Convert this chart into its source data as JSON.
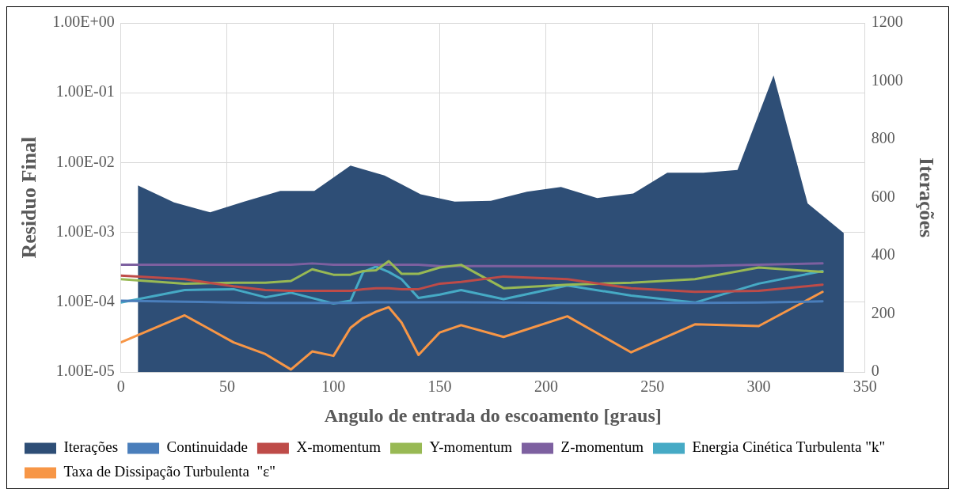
{
  "chart_data": {
    "type": "line",
    "xlabel": "Angulo de entrada do escoamento [graus]",
    "ylabel": "Residuo Final",
    "y2label": "Iterações",
    "x": [
      0,
      30,
      53,
      68,
      80,
      90,
      100,
      108,
      114,
      120,
      126,
      132,
      140,
      150,
      160,
      180,
      210,
      240,
      270,
      300,
      330
    ],
    "series": [
      {
        "name": "Iterações",
        "type": "area",
        "axis": "y2",
        "color": "#2e4e76",
        "x": [
          8,
          25,
          42,
          58,
          75,
          91,
          108,
          124,
          141,
          157,
          174,
          191,
          207,
          224,
          241,
          257,
          274,
          290,
          307,
          323,
          340
        ],
        "values": [
          642,
          583,
          549,
          586,
          623,
          623,
          710,
          676,
          611,
          586,
          589,
          620,
          636,
          598,
          614,
          685,
          685,
          695,
          1020,
          580,
          478
        ]
      },
      {
        "name": "Continuidade",
        "color": "#4a7ebb",
        "values": [
          0.000105,
          0.000102,
          9.9e-05,
          9.8e-05,
          9.8e-05,
          9.8e-05,
          9.8e-05,
          9.8e-05,
          9.9e-05,
          0.0001,
          0.0001,
          0.0001,
          0.0001,
          0.0001,
          0.0001,
          9.9e-05,
          9.8e-05,
          9.8e-05,
          9.8e-05,
          9.9e-05,
          0.000103
        ]
      },
      {
        "name": "X-momentum",
        "color": "#be4b48",
        "values": [
          0.000241,
          0.000214,
          0.000169,
          0.00015,
          0.000146,
          0.000146,
          0.000146,
          0.000146,
          0.000154,
          0.000159,
          0.000159,
          0.000154,
          0.000154,
          0.000185,
          0.000196,
          0.000234,
          0.000214,
          0.000159,
          0.000141,
          0.000146,
          0.000179
        ]
      },
      {
        "name": "Y-momentum",
        "color": "#98b954",
        "values": [
          0.000214,
          0.000185,
          0.00019,
          0.00019,
          0.000202,
          0.000297,
          0.000248,
          0.000248,
          0.00028,
          0.000288,
          0.000388,
          0.000256,
          0.000256,
          0.000315,
          0.000344,
          0.000159,
          0.000179,
          0.00019,
          0.000214,
          0.000315,
          0.000272
        ]
      },
      {
        "name": "Z-momentum",
        "color": "#7d60a0",
        "values": [
          0.000344,
          0.000344,
          0.000344,
          0.000344,
          0.000344,
          0.00036,
          0.000344,
          0.000344,
          0.000344,
          0.000344,
          0.000344,
          0.000344,
          0.000344,
          0.00033,
          0.00033,
          0.00033,
          0.00033,
          0.00033,
          0.00033,
          0.000344,
          0.00036
        ]
      },
      {
        "name": "Energia Cinética Turbulenta \"k\"",
        "color": "#46aac5",
        "values": [
          9.9e-05,
          0.00015,
          0.000154,
          0.000118,
          0.000137,
          0.000115,
          9.6e-05,
          0.000105,
          0.000272,
          0.000325,
          0.000272,
          0.000214,
          0.000115,
          0.000129,
          0.00015,
          0.000111,
          0.000174,
          0.000125,
          9.9e-05,
          0.000185,
          0.00028
        ]
      },
      {
        "name": "Taxa de Dissipação Turbulenta  \"ε\"",
        "color": "#f79646",
        "values": [
          2.67e-05,
          6.5e-05,
          2.67e-05,
          1.81e-05,
          1.09e-05,
          1.98e-05,
          1.71e-05,
          4.3e-05,
          5.96e-05,
          7.34e-05,
          8.5e-05,
          5.14e-05,
          1.76e-05,
          3.7e-05,
          4.7e-05,
          3.19e-05,
          6.3e-05,
          1.92e-05,
          4.84e-05,
          4.56e-05,
          0.000141
        ]
      }
    ],
    "log": "y",
    "xlim": [
      0,
      350
    ],
    "xticks": [
      0,
      50,
      100,
      150,
      200,
      250,
      300,
      350
    ],
    "ylim": [
      1e-05,
      1
    ],
    "yticks": [
      {
        "value": 1e-05,
        "label": "1.00E-05"
      },
      {
        "value": 0.0001,
        "label": "1.00E-04"
      },
      {
        "value": 0.001,
        "label": "1.00E-03"
      },
      {
        "value": 0.01,
        "label": "1.00E-02"
      },
      {
        "value": 0.1,
        "label": "1.00E-01"
      },
      {
        "value": 1,
        "label": "1.00E+00"
      }
    ],
    "y2lim": [
      0,
      1200
    ],
    "y2ticks": [
      0,
      200,
      400,
      600,
      800,
      1000,
      1200
    ],
    "grid": true,
    "legend": "bottom",
    "marker": "none",
    "line_style": "solid"
  }
}
